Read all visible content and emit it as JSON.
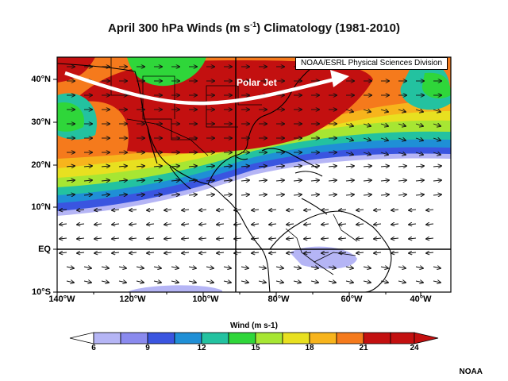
{
  "title": {
    "prefix": "April 300 hPa Winds (m s",
    "exponent": "-1",
    "suffix": ") Climatology (1981-2010)"
  },
  "credit_box": "NOAA/ESRL Physical Sciences Division",
  "jet_label": "Polar Jet",
  "lat_labels": [
    "40°N",
    "30°N",
    "20°N",
    "10°N",
    "EQ",
    "10°S"
  ],
  "lon_labels": [
    "140°W",
    "120°W",
    "100°W",
    "80°W",
    "60°W",
    "40°W"
  ],
  "colorbar": {
    "title": "Wind (m s-1)",
    "ticks": [
      "6",
      "9",
      "12",
      "15",
      "18",
      "21",
      "24"
    ],
    "colors": [
      "#b5b5f5",
      "#8a8aee",
      "#3a55e0",
      "#1f8fd6",
      "#23c2a0",
      "#2fd63a",
      "#a7e633",
      "#e8e020",
      "#f7b41c",
      "#f57a1c",
      "#c31010"
    ]
  },
  "footer": "NOAA"
}
